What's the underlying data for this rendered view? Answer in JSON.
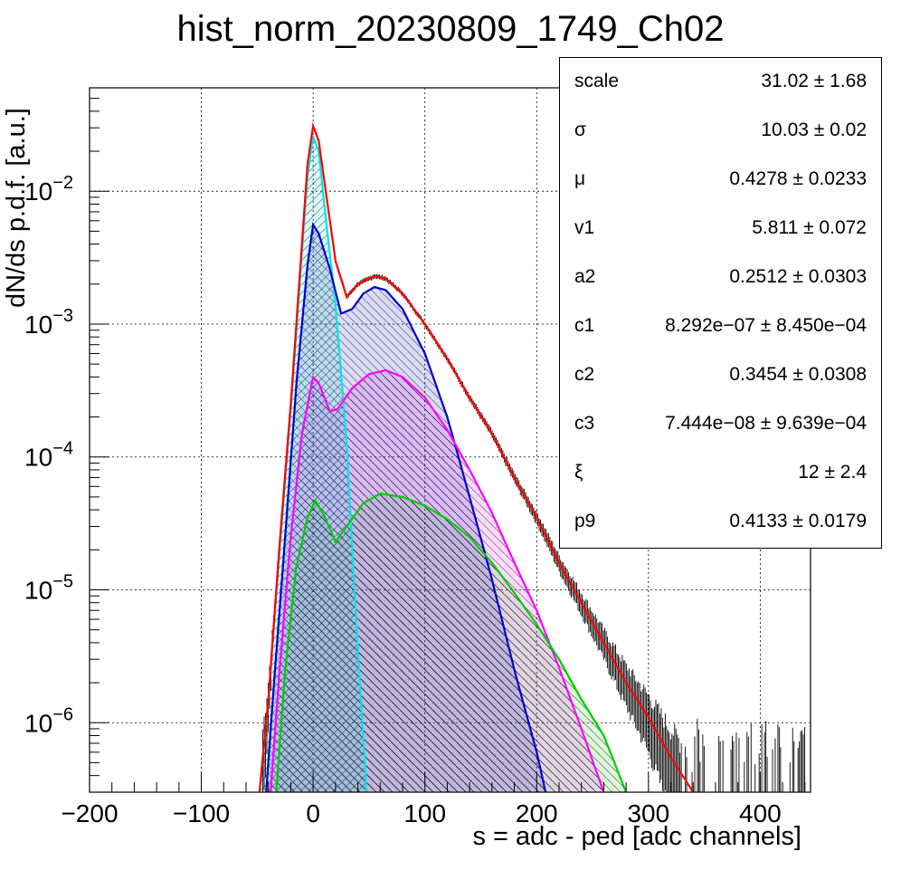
{
  "title": "hist_norm_20230809_1749_Ch02",
  "chart_data": {
    "type": "line",
    "title": "hist_norm_20230809_1749_Ch02",
    "xlabel": "s = adc - ped [adc channels]",
    "ylabel": "dN/ds p.d.f. [a.u.]",
    "xlim": [
      -200,
      445
    ],
    "ylim": [
      3e-07,
      0.06
    ],
    "yscale": "log",
    "grid": true,
    "x_ticks": [
      -200,
      -100,
      0,
      100,
      200,
      300,
      400
    ],
    "x_tick_labels": [
      "−200",
      "−100",
      "0",
      "100",
      "200",
      "300",
      "400"
    ],
    "y_ticks": [
      1e-06,
      1e-05,
      0.0001,
      0.001,
      0.01
    ],
    "y_tick_labels": [
      {
        "base": "10",
        "exp": "−6"
      },
      {
        "base": "10",
        "exp": "−5"
      },
      {
        "base": "10",
        "exp": "−4"
      },
      {
        "base": "10",
        "exp": "−3"
      },
      {
        "base": "10",
        "exp": "−2"
      }
    ],
    "series": [
      {
        "color": "#ff0000",
        "role": "total fit",
        "points": [
          [
            -48,
            3e-07
          ],
          [
            -40,
            1.5e-06
          ],
          [
            -30,
            2.2e-05
          ],
          [
            -20,
            0.00025
          ],
          [
            -10,
            0.004
          ],
          [
            -5,
            0.016
          ],
          [
            0,
            0.031
          ],
          [
            5,
            0.024
          ],
          [
            10,
            0.012
          ],
          [
            20,
            0.003
          ],
          [
            30,
            0.0016
          ],
          [
            40,
            0.002
          ],
          [
            55,
            0.0023
          ],
          [
            65,
            0.0022
          ],
          [
            80,
            0.0017
          ],
          [
            100,
            0.001
          ],
          [
            120,
            0.00055
          ],
          [
            140,
            0.00028
          ],
          [
            160,
            0.00015
          ],
          [
            180,
            7e-05
          ],
          [
            200,
            3.5e-05
          ],
          [
            220,
            1.6e-05
          ],
          [
            240,
            8e-06
          ],
          [
            260,
            4e-06
          ],
          [
            280,
            2e-06
          ],
          [
            300,
            1.1e-06
          ],
          [
            320,
            5.5e-07
          ],
          [
            340,
            3e-07
          ]
        ]
      },
      {
        "color": "#00e5e5",
        "role": "component",
        "points": [
          [
            -48,
            3e-07
          ],
          [
            -40,
            1.5e-06
          ],
          [
            -30,
            2e-05
          ],
          [
            -20,
            0.00023
          ],
          [
            -10,
            0.0035
          ],
          [
            -5,
            0.013
          ],
          [
            0,
            0.026
          ],
          [
            5,
            0.02
          ],
          [
            10,
            0.008
          ],
          [
            20,
            0.0014
          ],
          [
            30,
            0.00013
          ],
          [
            40,
            3.5e-06
          ],
          [
            48,
            3e-07
          ]
        ]
      },
      {
        "color": "#0000cc",
        "role": "component",
        "points": [
          [
            -42,
            3e-07
          ],
          [
            -35,
            2e-06
          ],
          [
            -25,
            2.5e-05
          ],
          [
            -15,
            0.00035
          ],
          [
            -5,
            0.0028
          ],
          [
            0,
            0.0056
          ],
          [
            5,
            0.0048
          ],
          [
            15,
            0.0026
          ],
          [
            25,
            0.0012
          ],
          [
            35,
            0.0013
          ],
          [
            45,
            0.0017
          ],
          [
            55,
            0.0019
          ],
          [
            65,
            0.0018
          ],
          [
            80,
            0.0013
          ],
          [
            100,
            0.0006
          ],
          [
            120,
            0.0002
          ],
          [
            140,
            5e-05
          ],
          [
            160,
            1.2e-05
          ],
          [
            180,
            2.5e-06
          ],
          [
            200,
            6e-07
          ],
          [
            208,
            3e-07
          ]
        ]
      },
      {
        "color": "#ff00ff",
        "role": "component",
        "points": [
          [
            -38,
            3e-07
          ],
          [
            -30,
            2.5e-06
          ],
          [
            -20,
            2.5e-05
          ],
          [
            -10,
            0.00015
          ],
          [
            0,
            0.0004
          ],
          [
            5,
            0.00036
          ],
          [
            15,
            0.00022
          ],
          [
            22,
            0.00023
          ],
          [
            35,
            0.00033
          ],
          [
            50,
            0.00042
          ],
          [
            65,
            0.00045
          ],
          [
            80,
            0.0004
          ],
          [
            100,
            0.00028
          ],
          [
            120,
            0.00016
          ],
          [
            140,
            8e-05
          ],
          [
            160,
            3.8e-05
          ],
          [
            180,
            1.6e-05
          ],
          [
            200,
            7e-06
          ],
          [
            220,
            2.6e-06
          ],
          [
            240,
            9e-07
          ],
          [
            260,
            3e-07
          ]
        ]
      },
      {
        "color": "#00cc00",
        "role": "component",
        "points": [
          [
            -33,
            3e-07
          ],
          [
            -25,
            2.5e-06
          ],
          [
            -15,
            1.5e-05
          ],
          [
            -5,
            3.5e-05
          ],
          [
            2,
            4.7e-05
          ],
          [
            10,
            3.6e-05
          ],
          [
            20,
            2.3e-05
          ],
          [
            30,
            3e-05
          ],
          [
            45,
            4.5e-05
          ],
          [
            60,
            5.3e-05
          ],
          [
            80,
            5e-05
          ],
          [
            100,
            4.3e-05
          ],
          [
            120,
            3.4e-05
          ],
          [
            140,
            2.5e-05
          ],
          [
            160,
            1.6e-05
          ],
          [
            180,
            9.5e-06
          ],
          [
            200,
            5.5e-06
          ],
          [
            220,
            3e-06
          ],
          [
            240,
            1.5e-06
          ],
          [
            260,
            8e-07
          ],
          [
            280,
            3e-07
          ]
        ]
      }
    ]
  },
  "stats": [
    {
      "name": "scale",
      "value": "31.02 ± 1.68"
    },
    {
      "name": "σ",
      "value": "10.03 ± 0.02"
    },
    {
      "name": "μ",
      "value": "0.4278 ± 0.0233"
    },
    {
      "name": "v1",
      "value": "5.811 ± 0.072"
    },
    {
      "name": "a2",
      "value": "0.2512 ± 0.0303"
    },
    {
      "name": "c1",
      "value": "8.292e−07 ± 8.450e−04"
    },
    {
      "name": "c2",
      "value": "0.3454 ± 0.0308"
    },
    {
      "name": "c3",
      "value": "7.444e−08 ± 9.639e−04"
    },
    {
      "name": "ξ",
      "value": "12 ± 2.4"
    },
    {
      "name": "p9",
      "value": "0.4133 ± 0.0179"
    }
  ]
}
